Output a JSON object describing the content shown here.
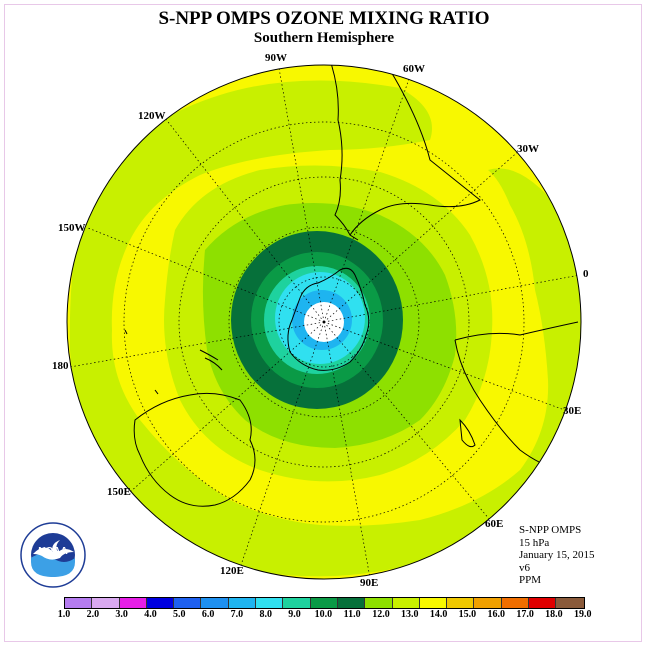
{
  "header": {
    "title": "S-NPP OMPS OZONE MIXING RATIO",
    "subtitle": "Southern Hemisphere"
  },
  "longitude_labels": [
    "90W",
    "60W",
    "30W",
    "0",
    "30E",
    "60E",
    "90E",
    "120E",
    "150E",
    "180",
    "150W",
    "120W"
  ],
  "info": {
    "instrument": "S-NPP OMPS",
    "level": "15 hPa",
    "date": "January 15, 2015",
    "version": "v6",
    "units": "PPM"
  },
  "logo": {
    "icon": "noaa-logo-icon",
    "text": "NOAA"
  },
  "colorbar": {
    "labels": [
      "1.0",
      "2.0",
      "3.0",
      "4.0",
      "5.0",
      "6.0",
      "7.0",
      "8.0",
      "9.0",
      "10.0",
      "11.0",
      "12.0",
      "13.0",
      "14.0",
      "15.0",
      "16.0",
      "17.0",
      "18.0",
      "19.0"
    ],
    "colors": [
      "#b57cf0",
      "#d9a9f0",
      "#e61ee6",
      "#0000e0",
      "#1e60f0",
      "#1e90f0",
      "#1eb4f0",
      "#30e0f0",
      "#1ed29e",
      "#0a9a46",
      "#06703a",
      "#8ee000",
      "#c8f000",
      "#f8f800",
      "#f0c800",
      "#f0a000",
      "#f06e00",
      "#e00000",
      "#8a5a3a"
    ]
  },
  "colors": {
    "ocean_bg": "#f8f800",
    "contour_13_14": "#c8f000",
    "contour_12_13": "#8ee000",
    "contour_11_12": "#06703a",
    "contour_10_11": "#0a9a46",
    "contour_9_10": "#1ed29e",
    "contour_8_9": "#30e0f0",
    "contour_7_8": "#1eb4f0",
    "pole": "#ffffff"
  }
}
